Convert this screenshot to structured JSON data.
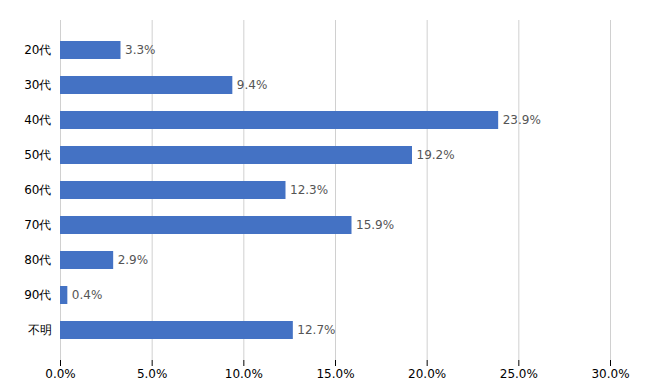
{
  "chart_data": {
    "type": "bar",
    "orientation": "horizontal",
    "categories": [
      "20代",
      "30代",
      "40代",
      "50代",
      "60代",
      "70代",
      "80代",
      "90代",
      "不明"
    ],
    "values": [
      3.3,
      9.4,
      23.9,
      19.2,
      12.3,
      15.9,
      2.9,
      0.4,
      12.7
    ],
    "value_labels": [
      "3.3%",
      "9.4%",
      "23.9%",
      "19.2%",
      "12.3%",
      "15.9%",
      "2.9%",
      "0.4%",
      "12.7%"
    ],
    "data_labels": true,
    "color": "#4472C4",
    "xlim": [
      0,
      30.0
    ],
    "xticks": [
      {
        "value": 0,
        "label": "0.0%"
      },
      {
        "value": 5.0,
        "label": "5.0%"
      },
      {
        "value": 10.0,
        "label": "10.0%"
      },
      {
        "value": 15.0,
        "label": "15.0%"
      },
      {
        "value": 20.0,
        "label": "20.0%"
      },
      {
        "value": 25.0,
        "label": "25.0%"
      },
      {
        "value": 30.0,
        "label": "30.0%"
      }
    ],
    "grid": true
  }
}
